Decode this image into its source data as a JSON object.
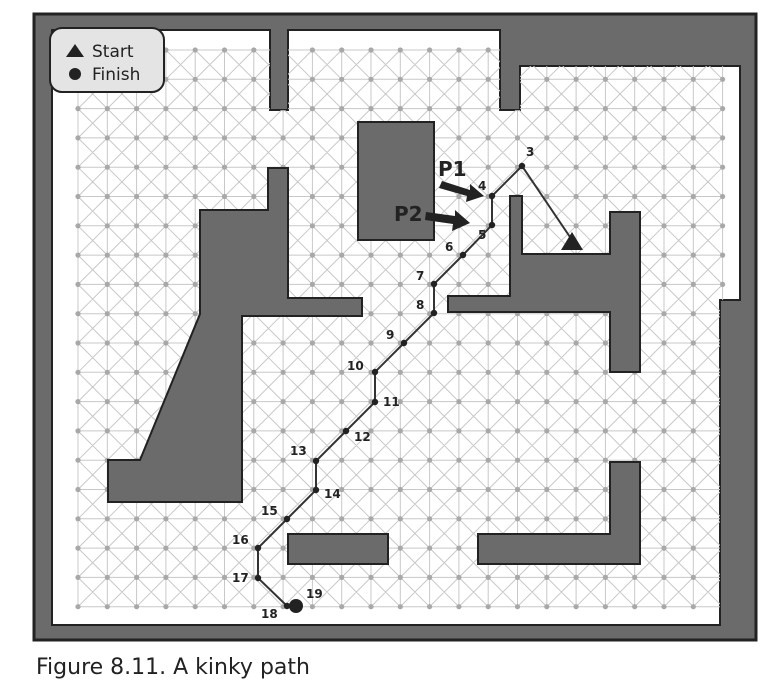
{
  "legend": {
    "start_label": "Start",
    "finish_label": "Finish",
    "start_icon": "triangle-icon",
    "finish_icon": "circle-icon"
  },
  "annotations": {
    "p1": "P1",
    "p2": "P2"
  },
  "path": {
    "labels": [
      "3",
      "4",
      "5",
      "6",
      "7",
      "8",
      "9",
      "10",
      "11",
      "12",
      "13",
      "14",
      "15",
      "16",
      "17",
      "18",
      "19"
    ]
  },
  "colors": {
    "wall": "#6b6b6b",
    "floor": "#ffffff",
    "grid": "#c8c8c8",
    "node": "#a8a8a8",
    "path": "#333333",
    "outline": "#222222"
  },
  "caption": "Figure 8.11. A kinky path"
}
